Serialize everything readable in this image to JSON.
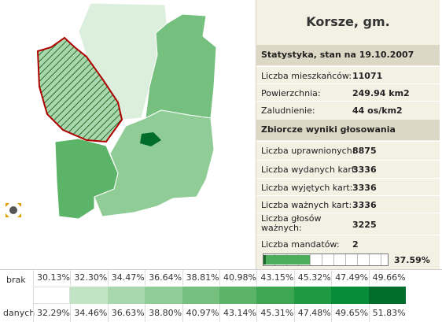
{
  "title": "Korsze, gm.",
  "stats": {
    "header": "Statystyka, stan na 19.10.2007",
    "rows": [
      [
        "Liczba mieszkańców:",
        "11071"
      ],
      [
        "Powierzchnia:",
        "249.94 km2"
      ],
      [
        "Zaludnienie:",
        "44 os/km2"
      ]
    ]
  },
  "voting": {
    "header": "Zbiorcze wyniki głosowania",
    "rows": [
      [
        "Liczba uprawnionych:",
        "8875"
      ],
      [
        "Liczba wydanych kart:",
        "3336"
      ],
      [
        "Liczba wyjętych kart:",
        "3336"
      ],
      [
        "Liczba ważnych kart:",
        "3336"
      ],
      [
        "Liczba głosów ważnych:",
        "3225"
      ],
      [
        "Liczba mandatów:",
        "2"
      ]
    ],
    "turnout": {
      "value": 37.59,
      "label": "37.59%"
    }
  },
  "legend": {
    "no_data_top": "brak",
    "no_data_bottom": "danych",
    "from": [
      "30.13%",
      "32.30%",
      "34.47%",
      "36.64%",
      "38.81%",
      "40.98%",
      "43.15%",
      "45.32%",
      "47.49%",
      "49.66%"
    ],
    "to": [
      "32.29%",
      "34.46%",
      "36.63%",
      "38.80%",
      "40.97%",
      "43.14%",
      "45.31%",
      "47.48%",
      "49.65%",
      "51.83%"
    ],
    "colors": [
      "#dcefdd",
      "#c2e3c4",
      "#a8d8ad",
      "#8fcc96",
      "#75c07f",
      "#5bb468",
      "#3ea751",
      "#1f9a43",
      "#078c37",
      "#006d2c"
    ]
  }
}
